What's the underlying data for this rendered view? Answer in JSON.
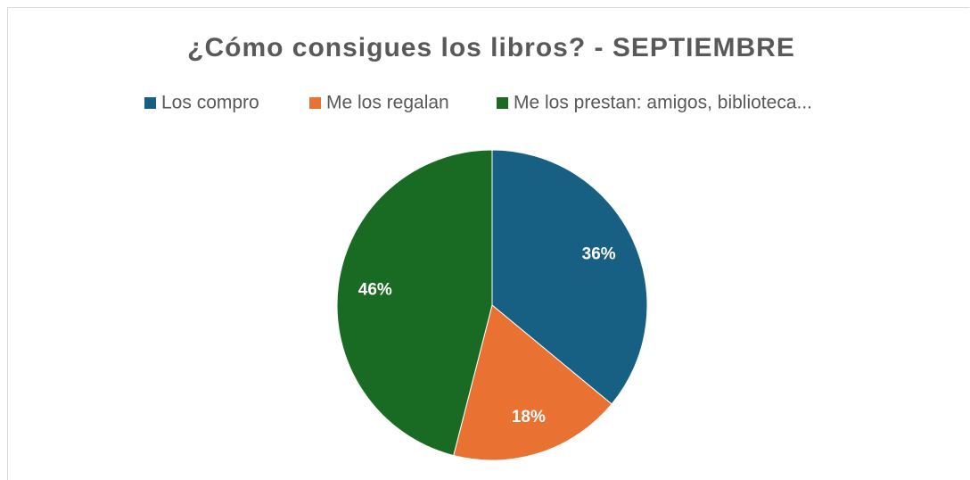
{
  "chart_data": {
    "type": "pie",
    "title": "¿Cómo consigues los libros? - SEPTIEMBRE",
    "categories": [
      "Los compro",
      "Me los regalan",
      "Me los prestan: amigos, biblioteca..."
    ],
    "values": [
      36,
      18,
      46
    ],
    "value_labels": [
      "36%",
      "18%",
      "46%"
    ],
    "colors": [
      "#185f84",
      "#e97132",
      "#196b24"
    ],
    "legend": "top"
  }
}
